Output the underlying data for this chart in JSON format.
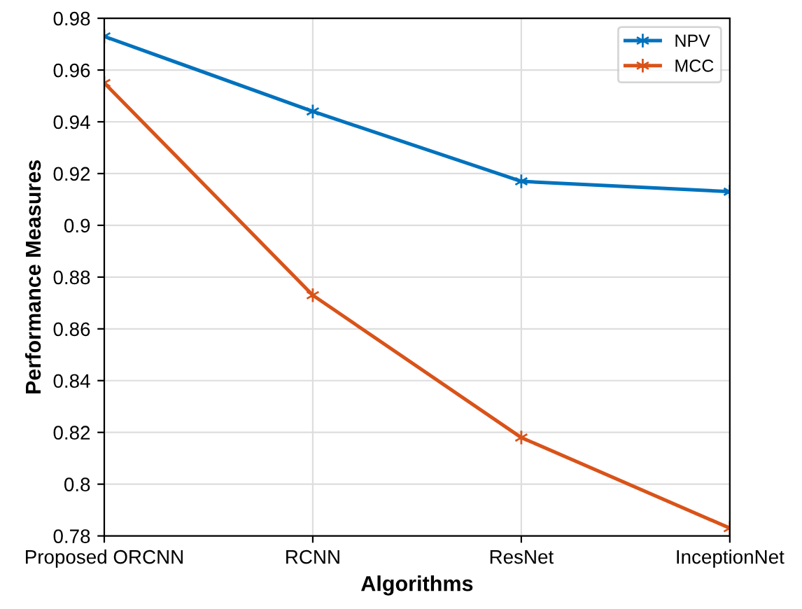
{
  "chart_data": {
    "type": "line",
    "xlabel": "Algorithms",
    "ylabel": "Performance Measures",
    "categories": [
      "Proposed ORCNN",
      "RCNN",
      "ResNet",
      "InceptionNet"
    ],
    "series": [
      {
        "name": "NPV",
        "color": "#0072bd",
        "values": [
          0.973,
          0.944,
          0.917,
          0.913
        ]
      },
      {
        "name": "MCC",
        "color": "#d95319",
        "values": [
          0.955,
          0.873,
          0.818,
          0.783
        ]
      }
    ],
    "ylim": [
      0.78,
      0.98
    ],
    "yticks": [
      0.78,
      0.8,
      0.82,
      0.84,
      0.86,
      0.88,
      0.9,
      0.92,
      0.94,
      0.96,
      0.98
    ],
    "grid": true,
    "legend": "top right",
    "marker": "cross",
    "line_style": "solid"
  }
}
